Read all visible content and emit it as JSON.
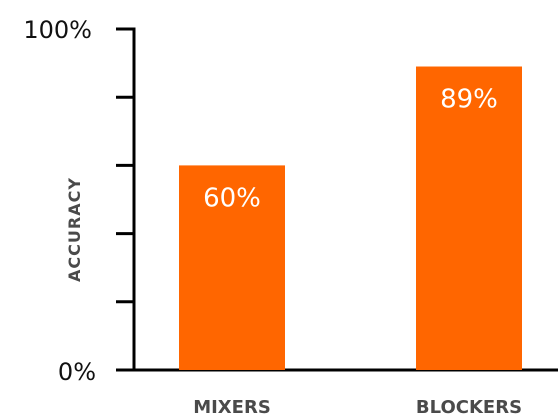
{
  "chart_data": {
    "type": "bar",
    "categories": [
      "MIXERS",
      "BLOCKERS"
    ],
    "values": [
      60,
      89
    ],
    "data_labels": [
      "60%",
      "89%"
    ],
    "ylabel": "ACCURACY",
    "ylim": [
      0,
      100
    ],
    "y_tick_labels": {
      "min": "0%",
      "max": "100%"
    },
    "y_ticks": [
      0,
      20,
      40,
      60,
      80,
      100
    ],
    "grid": false,
    "legend": "none",
    "bar_color": "#ff6600"
  }
}
